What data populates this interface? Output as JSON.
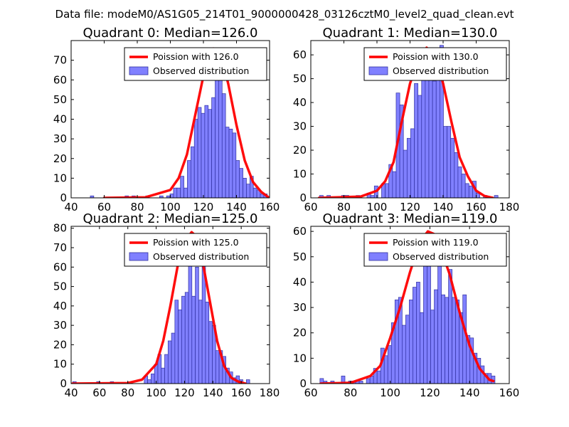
{
  "figure": {
    "suptitle": "Data file: modeM0/AS1G05_214T01_9000000428_03126cztM0_level2_quad_clean.evt"
  },
  "colors": {
    "bar_fill": "#8080ff",
    "bar_edge": "#3030a0",
    "curve": "#ff0000",
    "axis": "#000000"
  },
  "chart_data": [
    {
      "type": "bar",
      "title": "Quadrant 0: Median=126.0",
      "xlim": [
        40,
        160
      ],
      "ylim": [
        0,
        80
      ],
      "xticks": [
        40,
        60,
        80,
        100,
        120,
        140,
        160
      ],
      "yticks": [
        0,
        10,
        20,
        30,
        40,
        50,
        60,
        70
      ],
      "legend": {
        "position": "top-right",
        "curve_label": "Poission with 126.0",
        "bars_label": "Observed distribution"
      },
      "bin_width": 2.1,
      "bins": [
        [
          51.6,
          1
        ],
        [
          72.6,
          1
        ],
        [
          76.8,
          1
        ],
        [
          80.9,
          0
        ],
        [
          85.1,
          1
        ],
        [
          89.3,
          0
        ],
        [
          93.5,
          1
        ],
        [
          97.7,
          1
        ],
        [
          99.8,
          2
        ],
        [
          101.9,
          5
        ],
        [
          104.0,
          5
        ],
        [
          106.1,
          11
        ],
        [
          108.2,
          5
        ],
        [
          110.3,
          19
        ],
        [
          112.4,
          26
        ],
        [
          114.5,
          40
        ],
        [
          116.6,
          46
        ],
        [
          118.7,
          43
        ],
        [
          120.8,
          47
        ],
        [
          122.9,
          45
        ],
        [
          125.0,
          51
        ],
        [
          127.1,
          73
        ],
        [
          129.2,
          62
        ],
        [
          131.3,
          53
        ],
        [
          133.4,
          36
        ],
        [
          135.5,
          35
        ],
        [
          137.6,
          33
        ],
        [
          139.7,
          19
        ],
        [
          141.8,
          15
        ],
        [
          143.9,
          10
        ],
        [
          146.0,
          7
        ],
        [
          148.1,
          11
        ],
        [
          150.2,
          5
        ],
        [
          152.3,
          4
        ],
        [
          154.4,
          2
        ],
        [
          156.5,
          2
        ]
      ],
      "curve": [
        [
          60,
          0
        ],
        [
          85,
          0.3
        ],
        [
          100,
          4
        ],
        [
          105,
          10
        ],
        [
          110,
          22
        ],
        [
          115,
          42
        ],
        [
          120,
          62
        ],
        [
          126,
          76
        ],
        [
          130,
          75
        ],
        [
          135,
          58
        ],
        [
          140,
          37
        ],
        [
          145,
          19
        ],
        [
          150,
          8
        ],
        [
          155,
          3
        ],
        [
          159,
          0.5
        ]
      ]
    },
    {
      "type": "bar",
      "title": "Quadrant 1: Median=130.0",
      "xlim": [
        60,
        180
      ],
      "ylim": [
        0,
        66
      ],
      "xticks": [
        60,
        80,
        100,
        120,
        140,
        160,
        180
      ],
      "yticks": [
        0,
        10,
        20,
        30,
        40,
        50,
        60
      ],
      "legend": {
        "position": "top-right",
        "curve_label": "Poission with 130.0",
        "bars_label": "Observed distribution"
      },
      "bin_width": 2.2,
      "bins": [
        [
          65.3,
          1
        ],
        [
          69.7,
          1
        ],
        [
          78.6,
          1
        ],
        [
          80.8,
          1
        ],
        [
          87.4,
          1
        ],
        [
          94.0,
          2
        ],
        [
          96.2,
          1
        ],
        [
          98.4,
          5
        ],
        [
          102.8,
          6
        ],
        [
          105.0,
          6
        ],
        [
          107.2,
          14
        ],
        [
          109.4,
          11
        ],
        [
          111.6,
          44
        ],
        [
          113.8,
          39
        ],
        [
          116.0,
          20
        ],
        [
          118.2,
          25
        ],
        [
          120.4,
          29
        ],
        [
          122.6,
          48
        ],
        [
          124.8,
          43
        ],
        [
          127.0,
          57
        ],
        [
          129.2,
          50
        ],
        [
          131.4,
          55
        ],
        [
          133.6,
          49
        ],
        [
          135.8,
          51
        ],
        [
          138.0,
          64
        ],
        [
          140.2,
          30
        ],
        [
          142.4,
          30
        ],
        [
          144.6,
          25
        ],
        [
          146.8,
          19
        ],
        [
          149.0,
          13
        ],
        [
          151.2,
          10
        ],
        [
          153.4,
          6
        ],
        [
          155.6,
          5
        ],
        [
          157.8,
          7
        ],
        [
          160.0,
          2
        ],
        [
          164.4,
          1
        ],
        [
          171.0,
          1
        ]
      ],
      "curve": [
        [
          65,
          0
        ],
        [
          90,
          0.5
        ],
        [
          100,
          3
        ],
        [
          105,
          7
        ],
        [
          110,
          15
        ],
        [
          115,
          32
        ],
        [
          120,
          48
        ],
        [
          125,
          58
        ],
        [
          130,
          63
        ],
        [
          135,
          60
        ],
        [
          140,
          48
        ],
        [
          145,
          32
        ],
        [
          150,
          17
        ],
        [
          155,
          9
        ],
        [
          160,
          3
        ],
        [
          165,
          0.8
        ],
        [
          170,
          0
        ]
      ]
    },
    {
      "type": "bar",
      "title": "Quadrant 2: Median=125.0",
      "xlim": [
        40,
        180
      ],
      "ylim": [
        0,
        81
      ],
      "xticks": [
        40,
        60,
        80,
        100,
        120,
        140,
        160,
        180
      ],
      "yticks": [
        0,
        10,
        20,
        30,
        40,
        50,
        60,
        70,
        80
      ],
      "legend": {
        "position": "top-right",
        "curve_label": "Poission with 125.0",
        "bars_label": "Observed distribution"
      },
      "bin_width": 2.4,
      "bins": [
        [
          41.2,
          1
        ],
        [
          58.0,
          1
        ],
        [
          67.6,
          1
        ],
        [
          91.6,
          4
        ],
        [
          94.0,
          2
        ],
        [
          96.4,
          5
        ],
        [
          98.8,
          10
        ],
        [
          101.2,
          15
        ],
        [
          103.6,
          8
        ],
        [
          106.0,
          15
        ],
        [
          108.4,
          22
        ],
        [
          110.8,
          26
        ],
        [
          113.2,
          43
        ],
        [
          115.6,
          38
        ],
        [
          118.0,
          45
        ],
        [
          120.4,
          47
        ],
        [
          122.8,
          71
        ],
        [
          125.2,
          45
        ],
        [
          127.6,
          60
        ],
        [
          130.0,
          43
        ],
        [
          132.4,
          74
        ],
        [
          134.8,
          42
        ],
        [
          137.2,
          32
        ],
        [
          139.6,
          30
        ],
        [
          142.0,
          17
        ],
        [
          144.4,
          17
        ],
        [
          146.8,
          14
        ],
        [
          149.2,
          8
        ],
        [
          151.6,
          6
        ],
        [
          154.0,
          3
        ],
        [
          156.4,
          4
        ],
        [
          158.8,
          2
        ],
        [
          163.6,
          2
        ]
      ],
      "curve": [
        [
          41,
          0
        ],
        [
          80,
          0.3
        ],
        [
          90,
          2
        ],
        [
          100,
          10
        ],
        [
          105,
          22
        ],
        [
          110,
          40
        ],
        [
          115,
          60
        ],
        [
          120,
          73
        ],
        [
          125,
          78
        ],
        [
          128,
          76
        ],
        [
          133,
          62
        ],
        [
          138,
          42
        ],
        [
          143,
          22
        ],
        [
          148,
          9
        ],
        [
          153,
          3
        ],
        [
          158,
          1
        ],
        [
          163,
          0
        ]
      ]
    },
    {
      "type": "bar",
      "title": "Quadrant 3: Median=119.0",
      "xlim": [
        60,
        160
      ],
      "ylim": [
        0,
        62
      ],
      "xticks": [
        60,
        80,
        100,
        120,
        140,
        160
      ],
      "yticks": [
        0,
        10,
        20,
        30,
        40,
        50,
        60
      ],
      "legend": {
        "position": "top-right",
        "curve_label": "Poission with 119.0",
        "bars_label": "Observed distribution"
      },
      "bin_width": 1.8,
      "bins": [
        [
          64.6,
          2
        ],
        [
          66.4,
          1
        ],
        [
          70.0,
          1
        ],
        [
          75.4,
          3
        ],
        [
          79.0,
          1
        ],
        [
          80.8,
          1
        ],
        [
          82.6,
          1
        ],
        [
          84.4,
          1
        ],
        [
          88.0,
          2
        ],
        [
          89.8,
          3
        ],
        [
          91.6,
          6
        ],
        [
          93.4,
          5
        ],
        [
          95.2,
          14
        ],
        [
          97.0,
          11
        ],
        [
          98.8,
          15
        ],
        [
          100.6,
          24
        ],
        [
          102.4,
          33
        ],
        [
          104.2,
          34
        ],
        [
          106.0,
          23
        ],
        [
          107.8,
          27
        ],
        [
          109.6,
          33
        ],
        [
          111.4,
          38
        ],
        [
          113.2,
          40
        ],
        [
          115.0,
          28
        ],
        [
          116.8,
          54
        ],
        [
          118.6,
          58
        ],
        [
          120.4,
          29
        ],
        [
          122.2,
          37
        ],
        [
          124.0,
          53
        ],
        [
          125.8,
          35
        ],
        [
          127.6,
          34
        ],
        [
          129.4,
          45
        ],
        [
          131.2,
          34
        ],
        [
          133.0,
          33
        ],
        [
          134.8,
          28
        ],
        [
          136.6,
          35
        ],
        [
          138.4,
          19
        ],
        [
          140.2,
          18
        ],
        [
          142.0,
          12
        ],
        [
          143.8,
          10
        ],
        [
          145.6,
          7
        ],
        [
          147.4,
          4
        ],
        [
          149.2,
          4
        ],
        [
          151.0,
          3
        ]
      ],
      "curve": [
        [
          65,
          0
        ],
        [
          80,
          0.3
        ],
        [
          90,
          3
        ],
        [
          95,
          7
        ],
        [
          100,
          18
        ],
        [
          105,
          30
        ],
        [
          110,
          44
        ],
        [
          115,
          56
        ],
        [
          119,
          60
        ],
        [
          122,
          59
        ],
        [
          126,
          52
        ],
        [
          130,
          43
        ],
        [
          135,
          28
        ],
        [
          140,
          15
        ],
        [
          145,
          6
        ],
        [
          150,
          1.5
        ],
        [
          152,
          1
        ]
      ]
    }
  ]
}
